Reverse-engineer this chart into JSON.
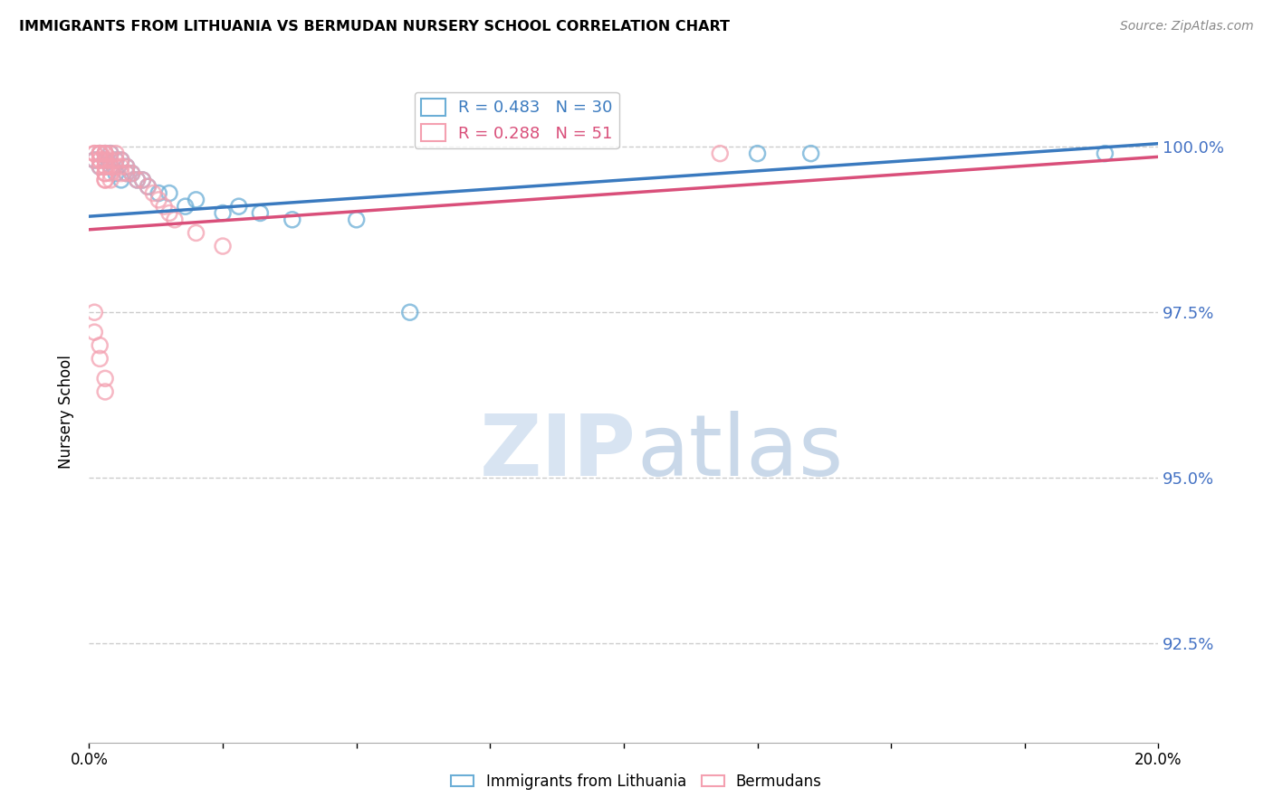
{
  "title": "IMMIGRANTS FROM LITHUANIA VS BERMUDAN NURSERY SCHOOL CORRELATION CHART",
  "source": "Source: ZipAtlas.com",
  "ylabel": "Nursery School",
  "ytick_labels": [
    "100.0%",
    "97.5%",
    "95.0%",
    "92.5%"
  ],
  "ytick_values": [
    1.0,
    0.975,
    0.95,
    0.925
  ],
  "xlim": [
    0.0,
    0.2
  ],
  "ylim": [
    0.91,
    1.01
  ],
  "legend_blue_label": "Immigrants from Lithuania",
  "legend_pink_label": "Bermudans",
  "R_blue": 0.483,
  "N_blue": 30,
  "R_pink": 0.288,
  "N_pink": 51,
  "blue_color": "#6baed6",
  "pink_color": "#f4a0b0",
  "trendline_blue_color": "#3a7abf",
  "trendline_pink_color": "#d94f7a",
  "blue_scatter_x": [
    0.001,
    0.002,
    0.002,
    0.003,
    0.003,
    0.004,
    0.004,
    0.005,
    0.005,
    0.006,
    0.006,
    0.007,
    0.007,
    0.008,
    0.009,
    0.01,
    0.011,
    0.013,
    0.015,
    0.018,
    0.02,
    0.025,
    0.028,
    0.032,
    0.038,
    0.05,
    0.06,
    0.125,
    0.135,
    0.19
  ],
  "blue_scatter_y": [
    0.998,
    0.999,
    0.997,
    0.999,
    0.998,
    0.999,
    0.997,
    0.998,
    0.996,
    0.998,
    0.995,
    0.997,
    0.996,
    0.996,
    0.995,
    0.995,
    0.994,
    0.993,
    0.993,
    0.991,
    0.992,
    0.99,
    0.991,
    0.99,
    0.989,
    0.989,
    0.975,
    0.999,
    0.999,
    0.999
  ],
  "pink_scatter_x": [
    0.001,
    0.001,
    0.001,
    0.002,
    0.002,
    0.002,
    0.002,
    0.002,
    0.002,
    0.003,
    0.003,
    0.003,
    0.003,
    0.003,
    0.003,
    0.003,
    0.003,
    0.003,
    0.003,
    0.003,
    0.004,
    0.004,
    0.004,
    0.004,
    0.004,
    0.005,
    0.005,
    0.005,
    0.006,
    0.006,
    0.006,
    0.007,
    0.007,
    0.008,
    0.009,
    0.01,
    0.011,
    0.012,
    0.013,
    0.014,
    0.015,
    0.016,
    0.02,
    0.025,
    0.001,
    0.001,
    0.002,
    0.002,
    0.003,
    0.003,
    0.118
  ],
  "pink_scatter_y": [
    0.999,
    0.999,
    0.998,
    0.999,
    0.999,
    0.999,
    0.998,
    0.998,
    0.997,
    0.999,
    0.999,
    0.999,
    0.998,
    0.998,
    0.997,
    0.997,
    0.996,
    0.996,
    0.995,
    0.995,
    0.999,
    0.998,
    0.997,
    0.996,
    0.995,
    0.999,
    0.998,
    0.997,
    0.998,
    0.997,
    0.996,
    0.997,
    0.996,
    0.996,
    0.995,
    0.995,
    0.994,
    0.993,
    0.992,
    0.991,
    0.99,
    0.989,
    0.987,
    0.985,
    0.975,
    0.972,
    0.97,
    0.968,
    0.965,
    0.963,
    0.999
  ],
  "watermark_zip": "ZIP",
  "watermark_atlas": "atlas",
  "background_color": "#ffffff",
  "grid_color": "#cccccc"
}
